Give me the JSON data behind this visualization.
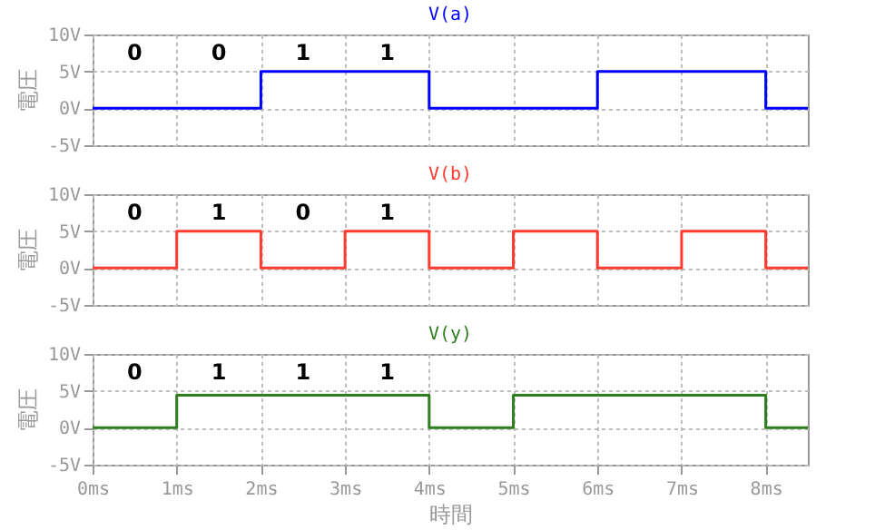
{
  "chart_data": [
    {
      "type": "step",
      "xlim": [
        0,
        8.5
      ],
      "ylim": [
        -5,
        10
      ],
      "xticks": [
        {
          "value": 0,
          "label": null
        },
        {
          "value": 1,
          "label": null
        },
        {
          "value": 2,
          "label": null
        },
        {
          "value": 3,
          "label": null
        },
        {
          "value": 4,
          "label": null
        },
        {
          "value": 5,
          "label": null
        },
        {
          "value": 6,
          "label": null
        },
        {
          "value": 7,
          "label": null
        },
        {
          "value": 8,
          "label": null
        }
      ],
      "yticks": [
        {
          "value": -5,
          "label": "-5V"
        },
        {
          "value": 0,
          "label": "0V"
        },
        {
          "value": 5,
          "label": "5V"
        },
        {
          "value": 10,
          "label": "10V"
        }
      ],
      "ylabel": "電圧",
      "grid": true,
      "tick_labels": "y",
      "series": [
        {
          "name": "V(a)",
          "color": "#0000ff",
          "x": [
            0,
            2,
            4,
            6,
            8,
            8.5
          ],
          "values": [
            0,
            5,
            0,
            5,
            0,
            0
          ]
        }
      ],
      "annotations": [
        "0",
        "0",
        "1",
        "1"
      ]
    },
    {
      "type": "step",
      "xlim": [
        0,
        8.5
      ],
      "ylim": [
        -5,
        10
      ],
      "xticks": [
        {
          "value": 0,
          "label": null
        },
        {
          "value": 1,
          "label": null
        },
        {
          "value": 2,
          "label": null
        },
        {
          "value": 3,
          "label": null
        },
        {
          "value": 4,
          "label": null
        },
        {
          "value": 5,
          "label": null
        },
        {
          "value": 6,
          "label": null
        },
        {
          "value": 7,
          "label": null
        },
        {
          "value": 8,
          "label": null
        }
      ],
      "yticks": [
        {
          "value": -5,
          "label": "-5V"
        },
        {
          "value": 0,
          "label": "0V"
        },
        {
          "value": 5,
          "label": "5V"
        },
        {
          "value": 10,
          "label": "10V"
        }
      ],
      "ylabel": "電圧",
      "grid": true,
      "tick_labels": "y",
      "series": [
        {
          "name": "V(b)",
          "color": "#ff3b30",
          "x": [
            0,
            1,
            2,
            3,
            4,
            5,
            6,
            7,
            8,
            8.5
          ],
          "values": [
            0,
            5,
            0,
            5,
            0,
            5,
            0,
            5,
            0,
            0
          ]
        }
      ],
      "annotations": [
        "0",
        "1",
        "0",
        "1"
      ]
    },
    {
      "type": "step",
      "xlim": [
        0,
        8.5
      ],
      "ylim": [
        -5,
        10
      ],
      "xticks": [
        {
          "value": 0,
          "label": "0ms"
        },
        {
          "value": 1,
          "label": "1ms"
        },
        {
          "value": 2,
          "label": "2ms"
        },
        {
          "value": 3,
          "label": "3ms"
        },
        {
          "value": 4,
          "label": "4ms"
        },
        {
          "value": 5,
          "label": "5ms"
        },
        {
          "value": 6,
          "label": "6ms"
        },
        {
          "value": 7,
          "label": "7ms"
        },
        {
          "value": 8,
          "label": "8ms"
        }
      ],
      "yticks": [
        {
          "value": -5,
          "label": "-5V"
        },
        {
          "value": 0,
          "label": "0V"
        },
        {
          "value": 5,
          "label": "5V"
        },
        {
          "value": 10,
          "label": "10V"
        }
      ],
      "xlabel": "時間",
      "ylabel": "電圧",
      "grid": true,
      "series": [
        {
          "name": "V(y)",
          "color": "#2e7d1e",
          "x": [
            0,
            1,
            4,
            5,
            8,
            8.5
          ],
          "values": [
            0,
            4.4,
            0,
            4.4,
            0,
            0
          ]
        }
      ],
      "annotations": [
        "0",
        "1",
        "1",
        "1"
      ]
    }
  ]
}
